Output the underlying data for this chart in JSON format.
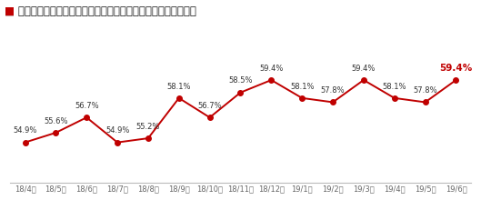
{
  "title": "楽天市場流通総額における楽天カード決済比率は継続的に拡大",
  "title_square_color": "#c00000",
  "title_fontsize": 8.5,
  "categories": [
    "18/4月",
    "18/5月",
    "18/6月",
    "18/7月",
    "18/8月",
    "18/9月",
    "18/10月",
    "18/11月",
    "18/12月",
    "19/1月",
    "19/2月",
    "19/3月",
    "19/4月",
    "19/5月",
    "19/6月"
  ],
  "values": [
    54.9,
    55.6,
    56.7,
    54.9,
    55.2,
    58.1,
    56.7,
    58.5,
    59.4,
    58.1,
    57.8,
    59.4,
    58.1,
    57.8,
    59.4
  ],
  "labels": [
    "54.9%",
    "55.6%",
    "56.7%",
    "54.9%",
    "55.2%",
    "58.1%",
    "56.7%",
    "58.5%",
    "59.4%",
    "58.1%",
    "57.8%",
    "59.4%",
    "58.1%",
    "57.8%",
    "59.4%"
  ],
  "line_color": "#c00000",
  "marker": "o",
  "marker_size": 4,
  "label_fontsize": 6.0,
  "last_label_color": "#c00000",
  "default_label_color": "#333333",
  "background_color": "#ffffff",
  "ylim": [
    52,
    62
  ],
  "tick_fontsize": 6.0,
  "spine_color": "#bbbbbb"
}
